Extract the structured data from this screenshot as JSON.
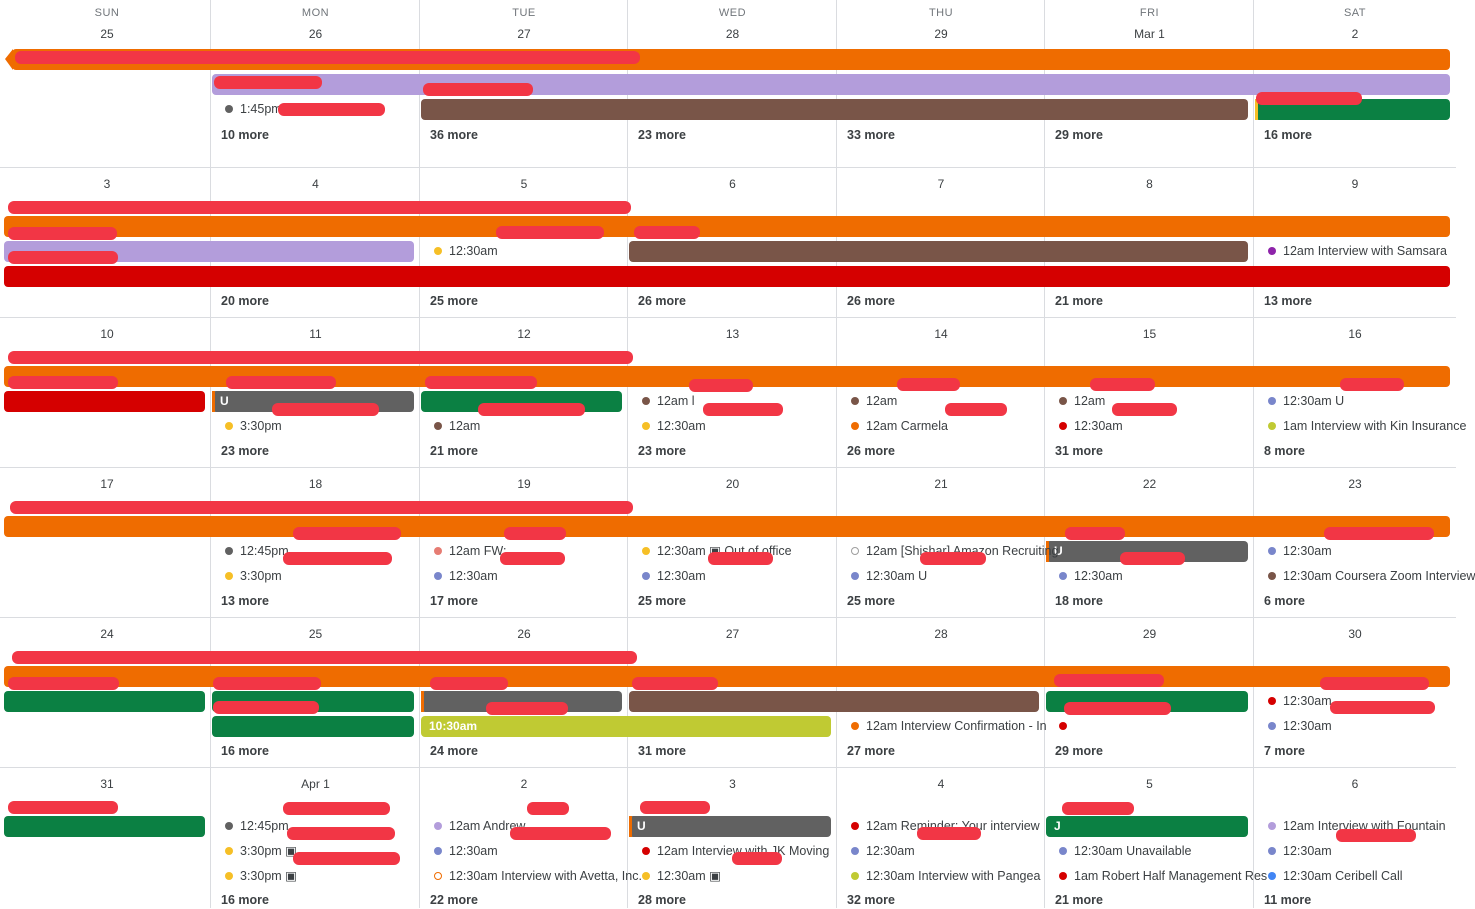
{
  "colors": {
    "orange": "#ef6c00",
    "lavender": "#b39ddb",
    "brown": "#795548",
    "green": "#0b8043",
    "red": "#d50000",
    "graphite": "#616161",
    "lime": "#c0ca33",
    "banana": "#f6bf26",
    "redaction": "#f23645"
  },
  "weekdays": [
    "SUN",
    "MON",
    "TUE",
    "WED",
    "THU",
    "FRI",
    "SAT"
  ],
  "weeks": [
    {
      "days": [
        "25",
        "26",
        "27",
        "28",
        "29",
        "Mar 1",
        "2"
      ],
      "bars": [
        {
          "color": "orange",
          "start": 0,
          "span": 7,
          "row": 0,
          "arrow": true,
          "label": ""
        },
        {
          "color": "lavender",
          "start": 1,
          "span": 6,
          "row": 1,
          "label": ""
        },
        {
          "color": "brown",
          "start": 2,
          "span": 4,
          "row": 2,
          "label": ""
        },
        {
          "color": "green",
          "start": 6,
          "span": 1,
          "row": 2,
          "edge": "y",
          "label": ""
        }
      ],
      "events": [
        {
          "day": 1,
          "row": 2,
          "dot": "#616161",
          "text": "1:45pm"
        }
      ],
      "more": [
        "",
        "10 more",
        "36 more",
        "23 more",
        "33 more",
        "29 more",
        "16 more"
      ]
    },
    {
      "days": [
        "3",
        "4",
        "5",
        "6",
        "7",
        "8",
        "9"
      ],
      "bars": [
        {
          "color": "orange",
          "start": 0,
          "span": 7,
          "row": 0,
          "label": ""
        },
        {
          "color": "lavender",
          "start": 0,
          "span": 2,
          "row": 1,
          "label": ""
        },
        {
          "color": "brown",
          "start": 3,
          "span": 3,
          "row": 1,
          "label": ""
        },
        {
          "color": "red",
          "start": 0,
          "span": 7,
          "row": 2,
          "label": ""
        }
      ],
      "events": [
        {
          "day": 2,
          "row": 1,
          "dot": "#f6bf26",
          "text": "12:30am"
        },
        {
          "day": 6,
          "row": 1,
          "dot": "#8e24aa",
          "text": "12am  Interview with Samsara"
        }
      ],
      "more": [
        "",
        "20 more",
        "25 more",
        "26 more",
        "26 more",
        "21 more",
        "13 more"
      ]
    },
    {
      "days": [
        "10",
        "11",
        "12",
        "13",
        "14",
        "15",
        "16"
      ],
      "bars": [
        {
          "color": "orange",
          "start": 0,
          "span": 7,
          "row": 0,
          "label": ""
        },
        {
          "color": "red",
          "start": 0,
          "span": 1,
          "row": 1,
          "label": ""
        },
        {
          "color": "graphite",
          "start": 1,
          "span": 1,
          "row": 1,
          "edge": "o",
          "label": "U"
        },
        {
          "color": "green",
          "start": 2,
          "span": 1,
          "row": 1,
          "label": ""
        }
      ],
      "events": [
        {
          "day": 1,
          "row": 2,
          "dot": "#f6bf26",
          "text": "3:30pm"
        },
        {
          "day": 2,
          "row": 2,
          "dot": "#795548",
          "text": "12am"
        },
        {
          "day": 3,
          "row": 1,
          "dot": "#795548",
          "text": "12am  l"
        },
        {
          "day": 3,
          "row": 2,
          "dot": "#f6bf26",
          "text": "12:30am"
        },
        {
          "day": 4,
          "row": 1,
          "dot": "#795548",
          "text": "12am"
        },
        {
          "day": 4,
          "row": 2,
          "dot": "#ef6c00",
          "text": "12am  Carmela"
        },
        {
          "day": 5,
          "row": 1,
          "dot": "#795548",
          "text": "12am"
        },
        {
          "day": 5,
          "row": 2,
          "dot": "#d50000",
          "text": "12:30am"
        },
        {
          "day": 6,
          "row": 1,
          "dot": "#7986cb",
          "text": "12:30am  U"
        },
        {
          "day": 6,
          "row": 2,
          "dot": "#c0ca33",
          "text": "1am  Interview with Kin Insurance"
        }
      ],
      "more": [
        "",
        "23 more",
        "21 more",
        "23 more",
        "26 more",
        "31 more",
        "8 more"
      ]
    },
    {
      "days": [
        "17",
        "18",
        "19",
        "20",
        "21",
        "22",
        "23"
      ],
      "bars": [
        {
          "color": "orange",
          "start": 0,
          "span": 7,
          "row": 0,
          "label": ""
        },
        {
          "color": "graphite",
          "start": 5,
          "span": 1,
          "row": 1,
          "edge": "o",
          "label": "U"
        }
      ],
      "events": [
        {
          "day": 1,
          "row": 1,
          "dot": "#616161",
          "text": "12:45pm"
        },
        {
          "day": 1,
          "row": 2,
          "dot": "#f6bf26",
          "text": "3:30pm"
        },
        {
          "day": 2,
          "row": 1,
          "dot": "#e67c73",
          "text": "12am  FW:"
        },
        {
          "day": 2,
          "row": 2,
          "dot": "#7986cb",
          "text": "12:30am"
        },
        {
          "day": 3,
          "row": 1,
          "dot": "#f6bf26",
          "text": "12:30am  ▣  Out of office"
        },
        {
          "day": 3,
          "row": 2,
          "dot": "#7986cb",
          "text": "12:30am"
        },
        {
          "day": 4,
          "row": 1,
          "dot": "#9e9e9e",
          "hollow": true,
          "text": "12am  [Shishar] Amazon Recruiting"
        },
        {
          "day": 4,
          "row": 2,
          "dot": "#7986cb",
          "text": "12:30am  U"
        },
        {
          "day": 5,
          "row": 2,
          "dot": "#7986cb",
          "text": "12:30am"
        },
        {
          "day": 6,
          "row": 1,
          "dot": "#7986cb",
          "text": "12:30am"
        },
        {
          "day": 6,
          "row": 2,
          "dot": "#795548",
          "text": "12:30am  Coursera Zoom Interview"
        }
      ],
      "more": [
        "",
        "13 more",
        "17 more",
        "25 more",
        "25 more",
        "18 more",
        "6 more"
      ]
    },
    {
      "days": [
        "24",
        "25",
        "26",
        "27",
        "28",
        "29",
        "30"
      ],
      "bars": [
        {
          "color": "orange",
          "start": 0,
          "span": 7,
          "row": 0,
          "label": ""
        },
        {
          "color": "green",
          "start": 0,
          "span": 1,
          "row": 1,
          "label": ""
        },
        {
          "color": "green",
          "start": 1,
          "span": 1,
          "row": 1,
          "label": ""
        },
        {
          "color": "graphite",
          "start": 2,
          "span": 1,
          "row": 1,
          "edge": "o",
          "label": ""
        },
        {
          "color": "brown",
          "start": 3,
          "span": 2,
          "row": 1,
          "label": ""
        },
        {
          "color": "green",
          "start": 5,
          "span": 1,
          "row": 1,
          "label": ""
        },
        {
          "color": "green",
          "start": 1,
          "span": 1,
          "row": 2,
          "label": ""
        },
        {
          "color": "lime",
          "start": 2,
          "span": 2,
          "row": 2,
          "label": "10:30am"
        }
      ],
      "events": [
        {
          "day": 4,
          "row": 2,
          "dot": "#ef6c00",
          "text": "12am  Interview Confirmation - In"
        },
        {
          "day": 5,
          "row": 2,
          "dot": "#d50000",
          "text": ""
        },
        {
          "day": 6,
          "row": 1,
          "dot": "#d50000",
          "text": "12:30am"
        },
        {
          "day": 6,
          "row": 2,
          "dot": "#7986cb",
          "text": "12:30am"
        }
      ],
      "more": [
        "",
        "16 more",
        "24 more",
        "31 more",
        "27 more",
        "29 more",
        "7 more"
      ]
    },
    {
      "days": [
        "31",
        "Apr 1",
        "2",
        "3",
        "4",
        "5",
        "6"
      ],
      "bars": [
        {
          "color": "green",
          "start": 0,
          "span": 1,
          "row": 0,
          "label": ""
        },
        {
          "color": "graphite",
          "start": 3,
          "span": 1,
          "row": 0,
          "edge": "o",
          "label": "U"
        },
        {
          "color": "green",
          "start": 5,
          "span": 1,
          "row": 0,
          "label": "J"
        }
      ],
      "events": [
        {
          "day": 1,
          "row": 0,
          "dot": "#616161",
          "text": "12:45pm"
        },
        {
          "day": 1,
          "row": 1,
          "dot": "#f6bf26",
          "text": "3:30pm  ▣"
        },
        {
          "day": 1,
          "row": 2,
          "dot": "#f6bf26",
          "text": "3:30pm  ▣"
        },
        {
          "day": 2,
          "row": 0,
          "dot": "#b39ddb",
          "text": "12am  Andrew"
        },
        {
          "day": 2,
          "row": 1,
          "dot": "#7986cb",
          "text": "12:30am"
        },
        {
          "day": 2,
          "row": 2,
          "dot": "#ef6c00",
          "hollow": true,
          "text": "12:30am  Interview with Avetta, Inc."
        },
        {
          "day": 3,
          "row": 1,
          "dot": "#d50000",
          "text": "12am  Interview with JK Moving"
        },
        {
          "day": 3,
          "row": 2,
          "dot": "#f6bf26",
          "text": "12:30am  ▣"
        },
        {
          "day": 4,
          "row": 0,
          "dot": "#d50000",
          "text": "12am  Reminder: Your interview"
        },
        {
          "day": 4,
          "row": 1,
          "dot": "#7986cb",
          "text": "12:30am"
        },
        {
          "day": 4,
          "row": 2,
          "dot": "#c0ca33",
          "text": "12:30am  Interview with Pangea"
        },
        {
          "day": 5,
          "row": 1,
          "dot": "#7986cb",
          "text": "12:30am  Unavailable"
        },
        {
          "day": 5,
          "row": 2,
          "dot": "#d50000",
          "text": "1am  Robert Half Management Res"
        },
        {
          "day": 6,
          "row": 0,
          "dot": "#b39ddb",
          "text": "12am  Interview with Fountain"
        },
        {
          "day": 6,
          "row": 1,
          "dot": "#7986cb",
          "text": "12:30am"
        },
        {
          "day": 6,
          "row": 2,
          "dot": "#4285f4",
          "text": "12:30am  Ceribell Call"
        }
      ],
      "more": [
        "",
        "16 more",
        "22 more",
        "28 more",
        "32 more",
        "21 more",
        "11 more"
      ]
    }
  ]
}
